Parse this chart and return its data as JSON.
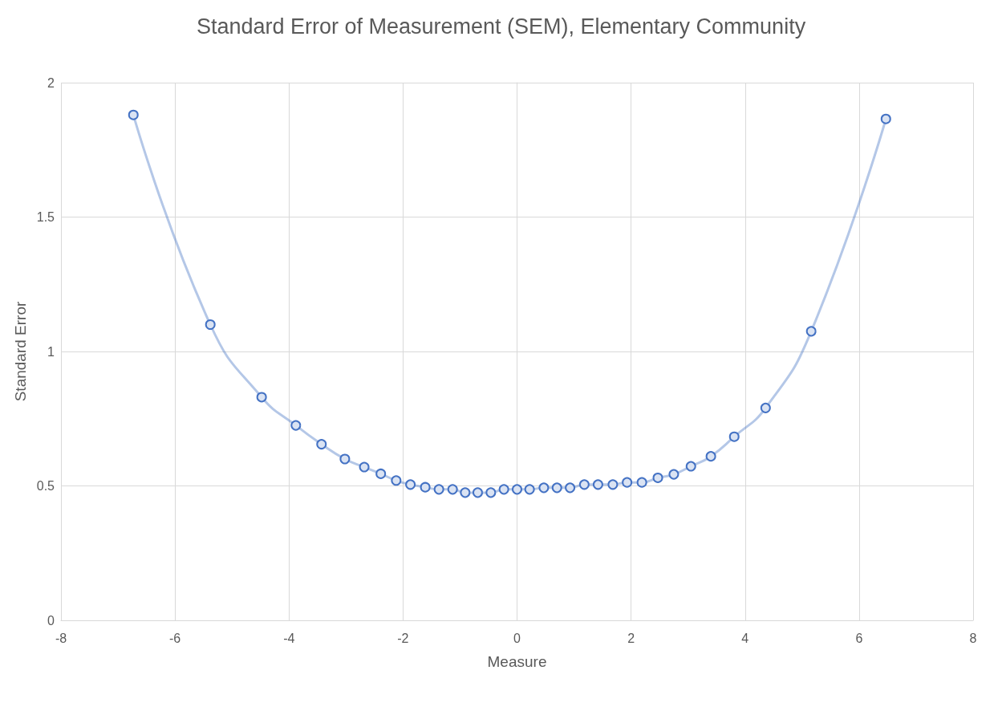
{
  "chart_data": {
    "type": "line",
    "title": "Standard Error of Measurement (SEM), Elementary Community",
    "xlabel": "Measure",
    "ylabel": "Standard Error",
    "x": [
      -6.73,
      -5.38,
      -4.48,
      -3.88,
      -3.43,
      -3.02,
      -2.68,
      -2.39,
      -2.12,
      -1.87,
      -1.61,
      -1.37,
      -1.13,
      -0.91,
      -0.69,
      -0.46,
      -0.23,
      0,
      0.22,
      0.47,
      0.7,
      0.93,
      1.18,
      1.42,
      1.68,
      1.93,
      2.19,
      2.47,
      2.75,
      3.05,
      3.4,
      3.81,
      4.36,
      5.16,
      6.47
    ],
    "series": [
      {
        "color": "#4472c4",
        "values": [
          1.88,
          1.1,
          0.83,
          0.725,
          0.655,
          0.6,
          0.57,
          0.545,
          0.52,
          0.505,
          0.495,
          0.487,
          0.487,
          0.475,
          0.475,
          0.475,
          0.487,
          0.487,
          0.487,
          0.493,
          0.493,
          0.493,
          0.505,
          0.505,
          0.505,
          0.513,
          0.513,
          0.53,
          0.543,
          0.573,
          0.61,
          0.683,
          0.79,
          1.075,
          1.865
        ]
      }
    ],
    "xlim": [
      -8,
      8
    ],
    "xticks": [
      -8,
      -6,
      -4,
      -2,
      0,
      2,
      4,
      6,
      8
    ],
    "ylim": [
      0,
      2
    ],
    "yticks": [
      0,
      0.5,
      1,
      1.5,
      2
    ],
    "grid": true,
    "marker": "circle",
    "line_style": "solid"
  }
}
